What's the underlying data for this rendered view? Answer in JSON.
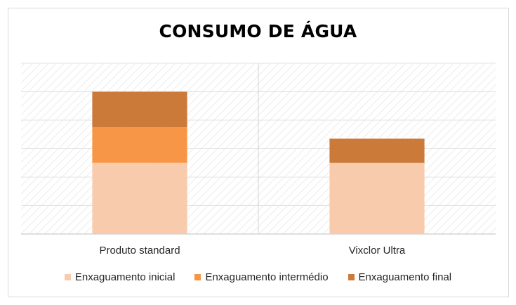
{
  "chart_data": {
    "type": "bar",
    "stacked": true,
    "title": "CONSUMO DE ÁGUA",
    "xlabel": "",
    "ylabel": "",
    "categories": [
      "Produto standard",
      "Vixclor Ultra"
    ],
    "series": [
      {
        "name": "Enxaguamento inicial",
        "values": [
          2.5,
          2.5
        ],
        "color": "#f8cbad"
      },
      {
        "name": "Enxaguamento intermédio",
        "values": [
          1.25,
          0
        ],
        "color": "#f79646"
      },
      {
        "name": "Enxaguamento final",
        "values": [
          1.25,
          0.85
        ],
        "color": "#cc7a3a"
      }
    ],
    "ylim": [
      0,
      6
    ],
    "grid": true,
    "axis_tick_labels_shown": false,
    "legend": "bottom"
  }
}
